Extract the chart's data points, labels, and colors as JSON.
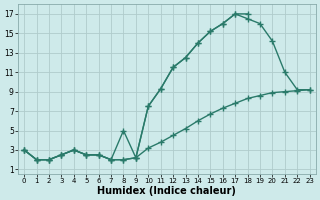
{
  "bg_color": "#ceeaea",
  "grid_color": "#b0cccc",
  "line_color": "#2a7a6a",
  "marker": "+",
  "markersize": 4,
  "linewidth": 1.0,
  "xlabel": "Humidex (Indice chaleur)",
  "xlabel_fontsize": 7,
  "yticks": [
    1,
    3,
    5,
    7,
    9,
    11,
    13,
    15,
    17
  ],
  "xticks": [
    0,
    1,
    2,
    3,
    4,
    5,
    6,
    7,
    8,
    9,
    10,
    11,
    12,
    13,
    14,
    15,
    16,
    17,
    18,
    19,
    20,
    21,
    22,
    23
  ],
  "xlim": [
    -0.5,
    23.5
  ],
  "ylim": [
    0.5,
    18
  ],
  "curve1_x": [
    0,
    1,
    2,
    3,
    4,
    5,
    6,
    7,
    8,
    9,
    10,
    11,
    12,
    13,
    14,
    15,
    16,
    17,
    18
  ],
  "curve1_y": [
    3,
    2,
    2,
    2.5,
    3,
    2.5,
    2.5,
    2,
    2,
    2.2,
    7.5,
    9.3,
    11.5,
    12.5,
    14.0,
    15.2,
    16.0,
    17.0,
    17.0
  ],
  "curve2_x": [
    0,
    1,
    2,
    3,
    4,
    5,
    6,
    7,
    8,
    9,
    10,
    11,
    12,
    13,
    14,
    15,
    16,
    17,
    18,
    19,
    20,
    21,
    22,
    23
  ],
  "curve2_y": [
    3,
    2,
    2,
    2.5,
    3,
    2.5,
    2.5,
    2,
    5,
    2.2,
    7.5,
    9.3,
    11.5,
    12.5,
    14.0,
    15.2,
    16.0,
    17.0,
    16.5,
    16.0,
    14.2,
    11.0,
    9.2,
    9.2
  ],
  "curve3_x": [
    0,
    1,
    2,
    3,
    4,
    5,
    6,
    7,
    8,
    9,
    10,
    11,
    12,
    13,
    14,
    15,
    16,
    17,
    18,
    19,
    20,
    21,
    22,
    23
  ],
  "curve3_y": [
    3,
    2,
    2,
    2.5,
    3,
    2.5,
    2.5,
    2,
    2,
    2.2,
    3.2,
    3.8,
    4.5,
    5.2,
    6.0,
    6.7,
    7.3,
    7.8,
    8.3,
    8.6,
    8.9,
    9.0,
    9.1,
    9.2
  ]
}
